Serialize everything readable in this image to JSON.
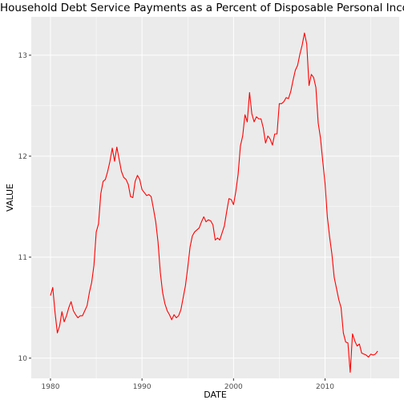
{
  "chart_data": {
    "type": "line",
    "title": "Household Debt Service Payments as a Percent of Disposable Personal Income",
    "xlabel": "DATE",
    "ylabel": "VALUE",
    "xlim": [
      1977.9,
      2018.1
    ],
    "ylim": [
      9.8,
      13.38
    ],
    "x_ticks": [
      1980,
      1990,
      2000,
      2010
    ],
    "y_ticks": [
      10,
      11,
      12,
      13
    ],
    "grid": true,
    "background": "#ebebeb",
    "line_color": "#ff0000",
    "series": [
      {
        "x": [
          1980.0,
          1980.25,
          1980.5,
          1980.75,
          1981.0,
          1981.25,
          1981.5,
          1981.75,
          1982.0,
          1982.25,
          1982.5,
          1982.75,
          1983.0,
          1983.25,
          1983.5,
          1983.75,
          1984.0,
          1984.25,
          1984.5,
          1984.75,
          1985.0,
          1985.25,
          1985.5,
          1985.75,
          1986.0,
          1986.25,
          1986.5,
          1986.75,
          1987.0,
          1987.25,
          1987.5,
          1987.75,
          1988.0,
          1988.25,
          1988.5,
          1988.75,
          1989.0,
          1989.25,
          1989.5,
          1989.75,
          1990.0,
          1990.25,
          1990.5,
          1990.75,
          1991.0,
          1991.25,
          1991.5,
          1991.75,
          1992.0,
          1992.25,
          1992.5,
          1992.75,
          1993.0,
          1993.25,
          1993.5,
          1993.75,
          1994.0,
          1994.25,
          1994.5,
          1994.75,
          1995.0,
          1995.25,
          1995.5,
          1995.75,
          1996.0,
          1996.25,
          1996.5,
          1996.75,
          1997.0,
          1997.25,
          1997.5,
          1997.75,
          1998.0,
          1998.25,
          1998.5,
          1998.75,
          1999.0,
          1999.25,
          1999.5,
          1999.75,
          2000.0,
          2000.25,
          2000.5,
          2000.75,
          2001.0,
          2001.25,
          2001.5,
          2001.75,
          2002.0,
          2002.25,
          2002.5,
          2002.75,
          2003.0,
          2003.25,
          2003.5,
          2003.75,
          2004.0,
          2004.25,
          2004.5,
          2004.75,
          2005.0,
          2005.25,
          2005.5,
          2005.75,
          2006.0,
          2006.25,
          2006.5,
          2006.75,
          2007.0,
          2007.25,
          2007.5,
          2007.75,
          2008.0,
          2008.25,
          2008.5,
          2008.75,
          2009.0,
          2009.25,
          2009.5,
          2009.75,
          2010.0,
          2010.25,
          2010.5,
          2010.75,
          2011.0,
          2011.25,
          2011.5,
          2011.75,
          2012.0,
          2012.25,
          2012.5,
          2012.75,
          2013.0,
          2013.25,
          2013.5,
          2013.75,
          2014.0,
          2014.25,
          2014.5,
          2014.75,
          2015.0,
          2015.25,
          2015.5,
          2015.75
        ],
        "values": [
          10.62,
          10.7,
          10.45,
          10.25,
          10.32,
          10.46,
          10.36,
          10.42,
          10.5,
          10.56,
          10.47,
          10.43,
          10.4,
          10.42,
          10.42,
          10.47,
          10.52,
          10.65,
          10.75,
          10.92,
          11.25,
          11.33,
          11.63,
          11.75,
          11.77,
          11.85,
          11.95,
          12.08,
          11.95,
          12.09,
          11.97,
          11.85,
          11.79,
          11.77,
          11.72,
          11.6,
          11.59,
          11.75,
          11.81,
          11.77,
          11.67,
          11.64,
          11.61,
          11.62,
          11.6,
          11.48,
          11.35,
          11.15,
          10.85,
          10.65,
          10.54,
          10.47,
          10.43,
          10.38,
          10.43,
          10.4,
          10.42,
          10.48,
          10.6,
          10.72,
          10.9,
          11.1,
          11.21,
          11.25,
          11.27,
          11.29,
          11.35,
          11.4,
          11.35,
          11.37,
          11.36,
          11.32,
          11.17,
          11.19,
          11.17,
          11.24,
          11.31,
          11.45,
          11.58,
          11.57,
          11.52,
          11.65,
          11.82,
          12.1,
          12.2,
          12.41,
          12.34,
          12.63,
          12.42,
          12.34,
          12.39,
          12.37,
          12.37,
          12.28,
          12.13,
          12.2,
          12.17,
          12.11,
          12.22,
          12.22,
          12.52,
          12.52,
          12.54,
          12.58,
          12.57,
          12.64,
          12.75,
          12.85,
          12.9,
          13.01,
          13.1,
          13.22,
          13.11,
          12.7,
          12.81,
          12.78,
          12.68,
          12.33,
          12.18,
          11.95,
          11.73,
          11.4,
          11.2,
          11.03,
          10.8,
          10.69,
          10.58,
          10.5,
          10.25,
          10.16,
          10.15,
          9.86,
          10.24,
          10.17,
          10.12,
          10.14,
          10.05,
          10.04,
          10.03,
          10.01,
          10.04,
          10.03,
          10.04,
          10.07
        ]
      }
    ]
  }
}
